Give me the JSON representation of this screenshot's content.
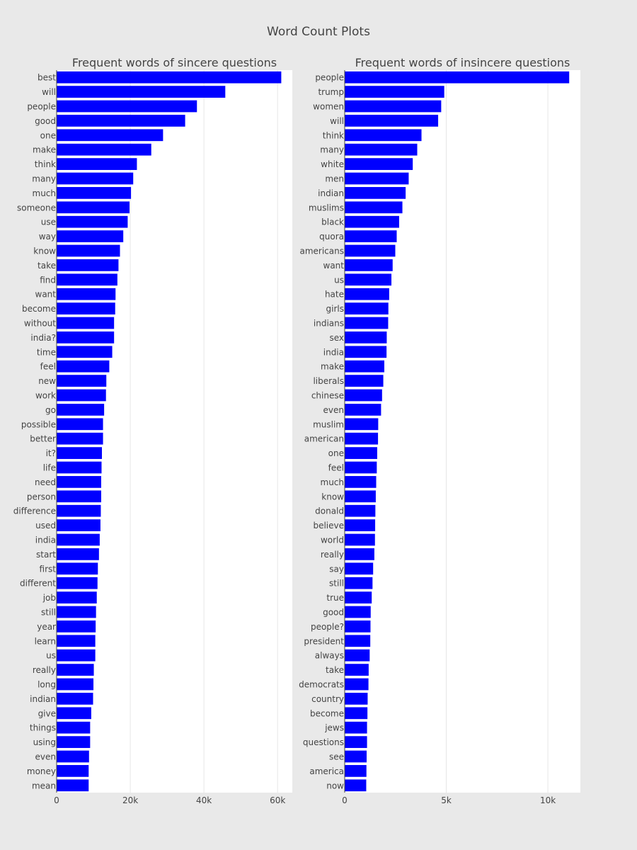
{
  "page": {
    "title": "Word Count Plots",
    "colors": {
      "background": "#e9e9e9",
      "plot_bg": "#ffffff",
      "bar": "#0000ff",
      "grid": "#e6e6e6",
      "text": "#444444"
    }
  },
  "chart_data": [
    {
      "type": "bar",
      "orientation": "horizontal",
      "title": "Frequent words of sincere questions",
      "xlim": [
        0,
        64000
      ],
      "xticks": [
        0,
        20000,
        40000,
        60000
      ],
      "xtick_labels": [
        "0",
        "20k",
        "40k",
        "60k"
      ],
      "grid": true,
      "categories": [
        "best",
        "will",
        "people",
        "good",
        "one",
        "make",
        "think",
        "many",
        "much",
        "someone",
        "use",
        "way",
        "know",
        "take",
        "find",
        "want",
        "become",
        "without",
        "india?",
        "time",
        "feel",
        "new",
        "work",
        "go",
        "possible",
        "better",
        "it?",
        "life",
        "need",
        "person",
        "difference",
        "used",
        "india",
        "start",
        "first",
        "different",
        "job",
        "still",
        "year",
        "learn",
        "us",
        "really",
        "long",
        "indian",
        "give",
        "things",
        "using",
        "even",
        "money",
        "mean"
      ],
      "values": [
        61000,
        45800,
        38100,
        34900,
        28900,
        25700,
        21800,
        20800,
        20200,
        19800,
        19300,
        18100,
        17200,
        16800,
        16500,
        16000,
        15900,
        15600,
        15600,
        15100,
        14300,
        13500,
        13400,
        12900,
        12600,
        12600,
        12300,
        12200,
        12100,
        12100,
        12000,
        11900,
        11700,
        11500,
        11200,
        11100,
        10900,
        10700,
        10600,
        10500,
        10500,
        10100,
        10000,
        9900,
        9400,
        9100,
        9100,
        8800,
        8700,
        8700
      ]
    },
    {
      "type": "bar",
      "orientation": "horizontal",
      "title": "Frequent words of insincere questions",
      "xlim": [
        0,
        11600
      ],
      "xticks": [
        0,
        5000,
        10000
      ],
      "xtick_labels": [
        "0",
        "5k",
        "10k"
      ],
      "grid": true,
      "categories": [
        "people",
        "trump",
        "women",
        "will",
        "think",
        "many",
        "white",
        "men",
        "indian",
        "muslims",
        "black",
        "quora",
        "americans",
        "want",
        "us",
        "hate",
        "girls",
        "indians",
        "sex",
        "india",
        "make",
        "liberals",
        "chinese",
        "even",
        "muslim",
        "american",
        "one",
        "feel",
        "much",
        "know",
        "donald",
        "believe",
        "world",
        "really",
        "say",
        "still",
        "true",
        "good",
        "people?",
        "president",
        "always",
        "take",
        "democrats",
        "country",
        "become",
        "jews",
        "questions",
        "see",
        "america",
        "now"
      ],
      "values": [
        11050,
        4900,
        4750,
        4600,
        3780,
        3570,
        3350,
        3150,
        3000,
        2840,
        2680,
        2560,
        2490,
        2360,
        2300,
        2190,
        2150,
        2140,
        2070,
        2060,
        1950,
        1900,
        1840,
        1790,
        1650,
        1640,
        1600,
        1580,
        1550,
        1530,
        1510,
        1500,
        1490,
        1460,
        1400,
        1370,
        1330,
        1280,
        1270,
        1260,
        1230,
        1180,
        1170,
        1130,
        1120,
        1100,
        1100,
        1080,
        1070,
        1060
      ]
    }
  ]
}
